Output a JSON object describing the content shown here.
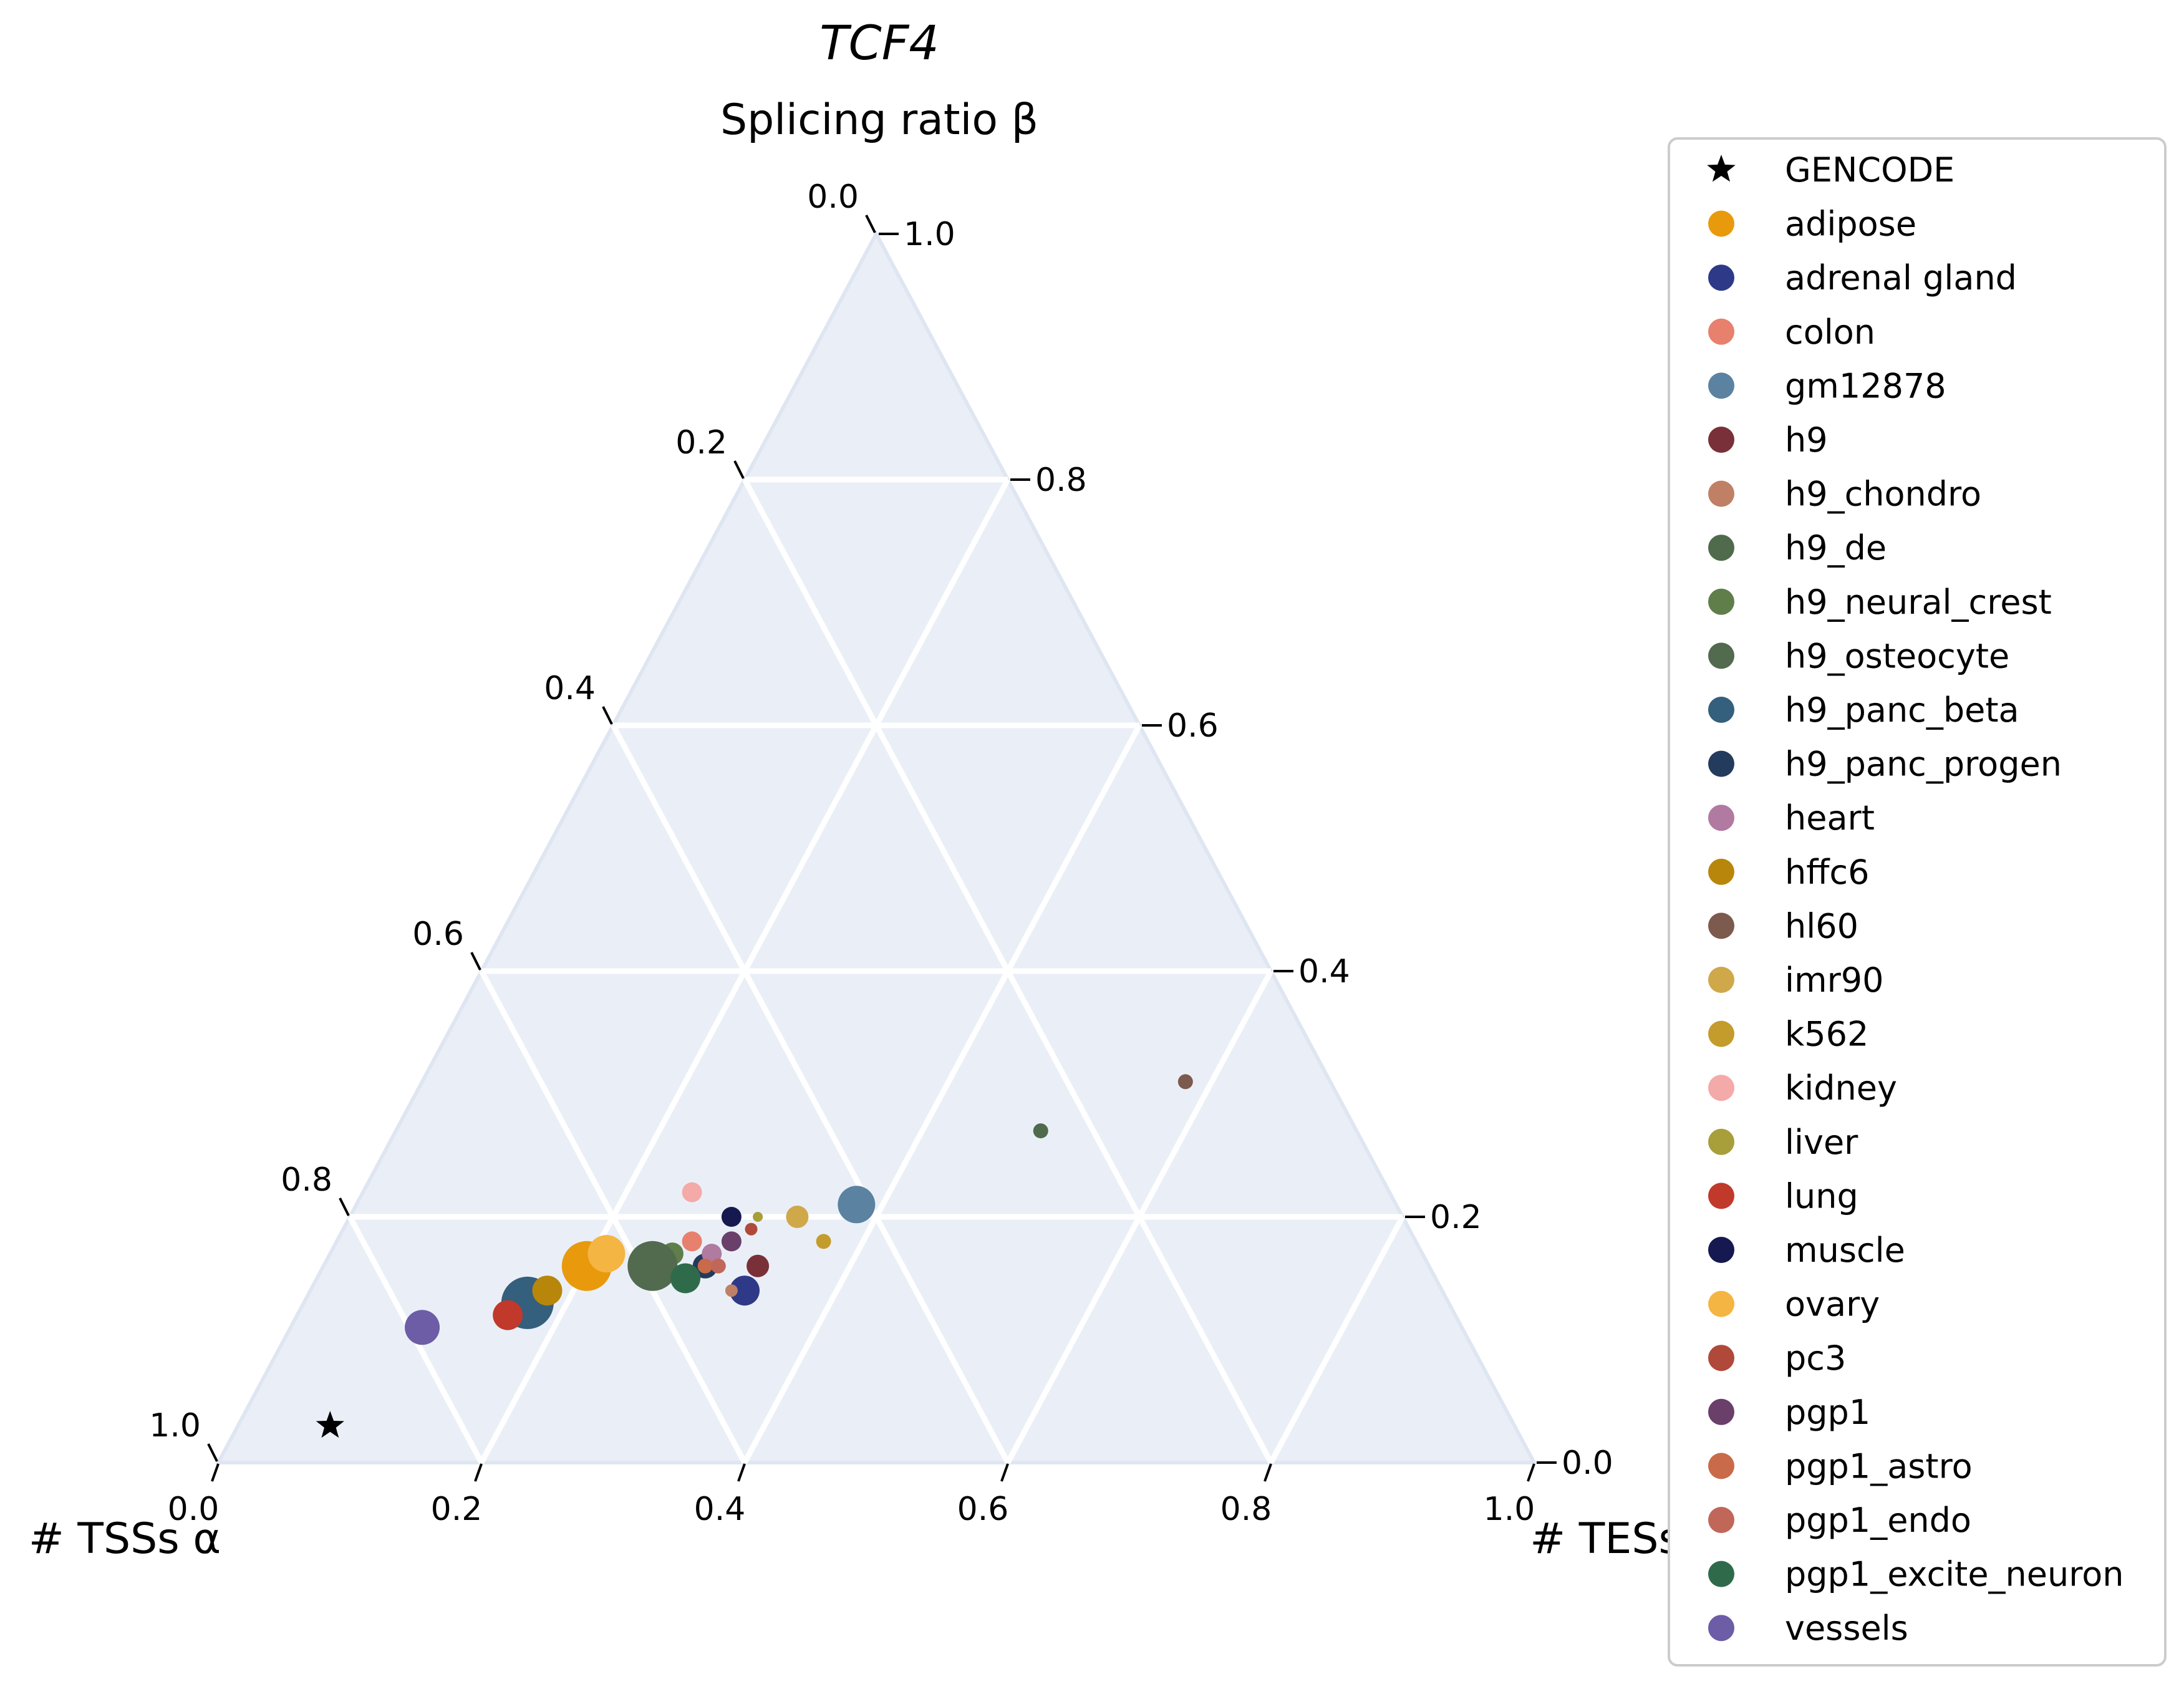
{
  "chart_data": {
    "type": "scatter",
    "subtype": "ternary",
    "title": "TCF4",
    "axes": {
      "top_label": "Splicing ratio β",
      "left_label": "# TSSs α",
      "right_label": "# TESs γ",
      "range": [
        0,
        1
      ],
      "ticks_bottom": [
        "0.0",
        "0.2",
        "0.4",
        "0.6",
        "0.8",
        "1.0"
      ],
      "ticks_left": [
        "1.0",
        "0.8",
        "0.6",
        "0.4",
        "0.2",
        "0.0"
      ],
      "ticks_right": [
        "0.0",
        "0.2",
        "0.4",
        "0.6",
        "0.8",
        "1.0"
      ],
      "grid": true,
      "background": "#eaeff7"
    },
    "legend_position": "right",
    "series": [
      {
        "name": "GENCODE",
        "color": "#000000",
        "marker": "star",
        "points": [
          {
            "a": 0.07,
            "b": 0.03,
            "size": 14
          }
        ]
      },
      {
        "name": "adipose",
        "color": "#e89a0c",
        "points": [
          {
            "a": 0.2,
            "b": 0.16,
            "size": 40
          }
        ]
      },
      {
        "name": "adrenal gland",
        "color": "#2e3a87",
        "points": [
          {
            "a": 0.33,
            "b": 0.14,
            "size": 24
          }
        ]
      },
      {
        "name": "colon",
        "color": "#e8806e",
        "points": [
          {
            "a": 0.27,
            "b": 0.18,
            "size": 16
          }
        ]
      },
      {
        "name": "gm12878",
        "color": "#5b82a1",
        "points": [
          {
            "a": 0.38,
            "b": 0.21,
            "size": 30
          }
        ]
      },
      {
        "name": "h9",
        "color": "#7a3038",
        "points": [
          {
            "a": 0.33,
            "b": 0.16,
            "size": 18
          }
        ]
      },
      {
        "name": "h9_chondro",
        "color": "#bf8066",
        "points": [
          {
            "a": 0.32,
            "b": 0.14,
            "size": 10
          }
        ]
      },
      {
        "name": "h9_de",
        "color": "#4f6b4c",
        "points": [
          {
            "a": 0.49,
            "b": 0.27,
            "size": 12
          }
        ]
      },
      {
        "name": "h9_neural_crest",
        "color": "#5f7e4a",
        "points": [
          {
            "a": 0.26,
            "b": 0.17,
            "size": 18
          }
        ]
      },
      {
        "name": "h9_osteocyte",
        "color": "#526a4e",
        "points": [
          {
            "a": 0.25,
            "b": 0.16,
            "size": 40
          }
        ]
      },
      {
        "name": "h9_panc_beta",
        "color": "#345f7d",
        "points": [
          {
            "a": 0.17,
            "b": 0.13,
            "size": 42
          }
        ]
      },
      {
        "name": "h9_panc_progen",
        "color": "#233b5c",
        "points": [
          {
            "a": 0.29,
            "b": 0.16,
            "size": 20
          }
        ]
      },
      {
        "name": "heart",
        "color": "#b07aa1",
        "points": [
          {
            "a": 0.29,
            "b": 0.17,
            "size": 16
          }
        ]
      },
      {
        "name": "hffc6",
        "color": "#b8860b",
        "points": [
          {
            "a": 0.18,
            "b": 0.14,
            "size": 24
          }
        ]
      },
      {
        "name": "hl60",
        "color": "#7d5a4e",
        "points": [
          {
            "a": 0.58,
            "b": 0.31,
            "size": 12
          }
        ]
      },
      {
        "name": "imr90",
        "color": "#cfa84a",
        "points": [
          {
            "a": 0.34,
            "b": 0.2,
            "size": 18
          }
        ]
      },
      {
        "name": "k562",
        "color": "#c49c2c",
        "points": [
          {
            "a": 0.37,
            "b": 0.18,
            "size": 12
          }
        ]
      },
      {
        "name": "kidney",
        "color": "#f4aaa8",
        "points": [
          {
            "a": 0.25,
            "b": 0.22,
            "size": 16
          }
        ]
      },
      {
        "name": "liver",
        "color": "#a89e3a",
        "points": [
          {
            "a": 0.31,
            "b": 0.2,
            "size": 8
          }
        ]
      },
      {
        "name": "lung",
        "color": "#c0392b",
        "points": [
          {
            "a": 0.16,
            "b": 0.12,
            "size": 24
          }
        ]
      },
      {
        "name": "muscle",
        "color": "#161850",
        "points": [
          {
            "a": 0.29,
            "b": 0.2,
            "size": 16
          }
        ]
      },
      {
        "name": "ovary",
        "color": "#f5b542",
        "points": [
          {
            "a": 0.21,
            "b": 0.17,
            "size": 30
          }
        ]
      },
      {
        "name": "pc3",
        "color": "#b0493a",
        "points": [
          {
            "a": 0.31,
            "b": 0.19,
            "size": 10
          }
        ]
      },
      {
        "name": "pgp1",
        "color": "#6a3f6a",
        "points": [
          {
            "a": 0.3,
            "b": 0.18,
            "size": 16
          }
        ]
      },
      {
        "name": "pgp1_astro",
        "color": "#c96a4a",
        "points": [
          {
            "a": 0.29,
            "b": 0.16,
            "size": 12
          }
        ]
      },
      {
        "name": "pgp1_endo",
        "color": "#c0675a",
        "points": [
          {
            "a": 0.3,
            "b": 0.16,
            "size": 12
          }
        ]
      },
      {
        "name": "pgp1_excite_neuron",
        "color": "#2f6b4a",
        "points": [
          {
            "a": 0.28,
            "b": 0.15,
            "size": 24
          }
        ]
      },
      {
        "name": "vessels",
        "color": "#6d5ca6",
        "points": [
          {
            "a": 0.1,
            "b": 0.11,
            "size": 28
          }
        ]
      }
    ]
  }
}
